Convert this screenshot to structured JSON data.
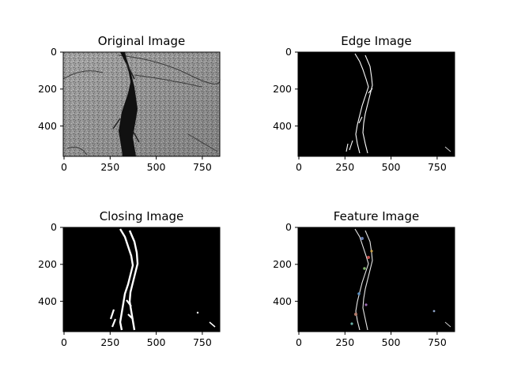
{
  "figure": {
    "panels": [
      {
        "id": "original",
        "title": "Original Image",
        "x_ticks": [
          "0",
          "250",
          "500",
          "750"
        ],
        "y_ticks": [
          "0",
          "200",
          "400"
        ]
      },
      {
        "id": "edge",
        "title": "Edge Image",
        "x_ticks": [
          "0",
          "250",
          "500",
          "750"
        ],
        "y_ticks": [
          "0",
          "200",
          "400"
        ]
      },
      {
        "id": "closing",
        "title": "Closing Image",
        "x_ticks": [
          "0",
          "250",
          "500",
          "750"
        ],
        "y_ticks": [
          "0",
          "200",
          "400"
        ]
      },
      {
        "id": "feature",
        "title": "Feature Image",
        "x_ticks": [
          "0",
          "250",
          "500",
          "750"
        ],
        "y_ticks": [
          "0",
          "200",
          "400"
        ]
      }
    ]
  }
}
